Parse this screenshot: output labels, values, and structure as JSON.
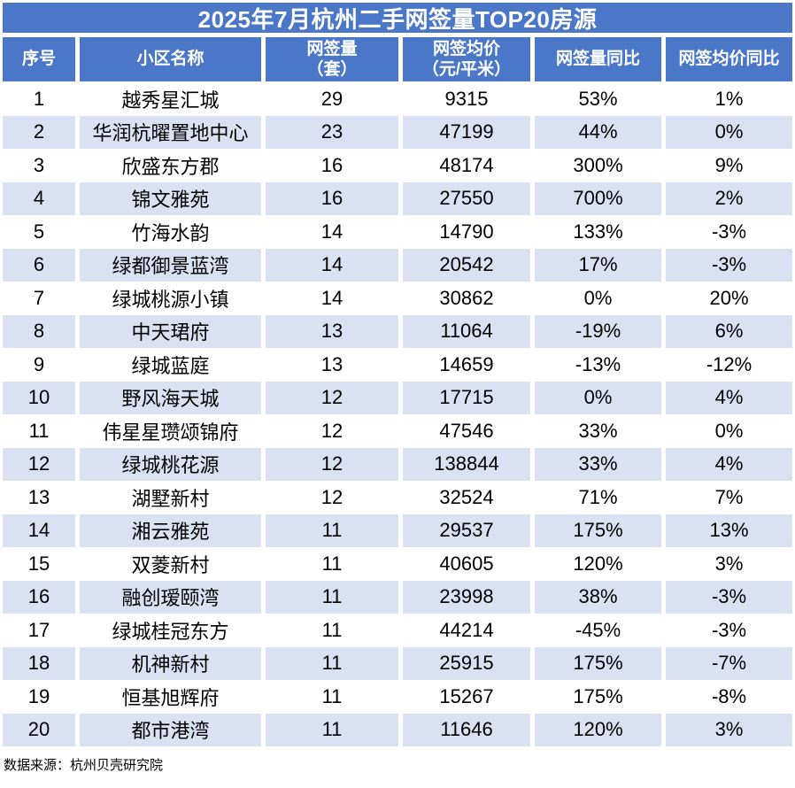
{
  "title": "2025年7月杭州二手网签量TOP20房源",
  "header": {
    "col1": "序号",
    "col2": "小区名称",
    "col3_line1": "网签量",
    "col3_line2": "（套）",
    "col4_line1": "网签均价",
    "col4_line2": "（元/平米）",
    "col5": "网签量同比",
    "col6": "网签均价同比"
  },
  "chart_data": {
    "type": "table",
    "title": "2025年7月杭州二手网签量TOP20房源",
    "columns": [
      "序号",
      "小区名称",
      "网签量（套）",
      "网签均价（元/平米）",
      "网签量同比",
      "网签均价同比"
    ],
    "rows": [
      [
        "1",
        "越秀星汇城",
        "29",
        "9315",
        "53%",
        "1%"
      ],
      [
        "2",
        "华润杭曜置地中心",
        "23",
        "47199",
        "44%",
        "0%"
      ],
      [
        "3",
        "欣盛东方郡",
        "16",
        "48174",
        "300%",
        "9%"
      ],
      [
        "4",
        "锦文雅苑",
        "16",
        "27550",
        "700%",
        "2%"
      ],
      [
        "5",
        "竹海水韵",
        "14",
        "14790",
        "133%",
        "-3%"
      ],
      [
        "6",
        "绿都御景蓝湾",
        "14",
        "20542",
        "17%",
        "-3%"
      ],
      [
        "7",
        "绿城桃源小镇",
        "14",
        "30862",
        "0%",
        "20%"
      ],
      [
        "8",
        "中天珺府",
        "13",
        "11064",
        "-19%",
        "6%"
      ],
      [
        "9",
        "绿城蓝庭",
        "13",
        "14659",
        "-13%",
        "-12%"
      ],
      [
        "10",
        "野风海天城",
        "12",
        "17715",
        "0%",
        "4%"
      ],
      [
        "11",
        "伟星星瓒颂锦府",
        "12",
        "47546",
        "33%",
        "0%"
      ],
      [
        "12",
        "绿城桃花源",
        "12",
        "138844",
        "33%",
        "4%"
      ],
      [
        "13",
        "湖墅新村",
        "12",
        "32524",
        "71%",
        "7%"
      ],
      [
        "14",
        "湘云雅苑",
        "11",
        "29537",
        "175%",
        "13%"
      ],
      [
        "15",
        "双菱新村",
        "11",
        "40605",
        "120%",
        "3%"
      ],
      [
        "16",
        "融创瑷颐湾",
        "11",
        "23998",
        "38%",
        "-3%"
      ],
      [
        "17",
        "绿城桂冠东方",
        "11",
        "44214",
        "-45%",
        "-3%"
      ],
      [
        "18",
        "机神新村",
        "11",
        "25915",
        "175%",
        "-7%"
      ],
      [
        "19",
        "恒基旭辉府",
        "11",
        "15267",
        "175%",
        "-8%"
      ],
      [
        "20",
        "都市港湾",
        "11",
        "11646",
        "120%",
        "3%"
      ]
    ]
  },
  "footer": {
    "source": "数据来源：杭州贝壳研究院"
  },
  "colors": {
    "header_blue": "#4A77C8",
    "row_alt": "#D9E1F2",
    "title_text": "#FFFFFF",
    "body_text": "#000000",
    "page_bg": "#FFFFFF"
  }
}
